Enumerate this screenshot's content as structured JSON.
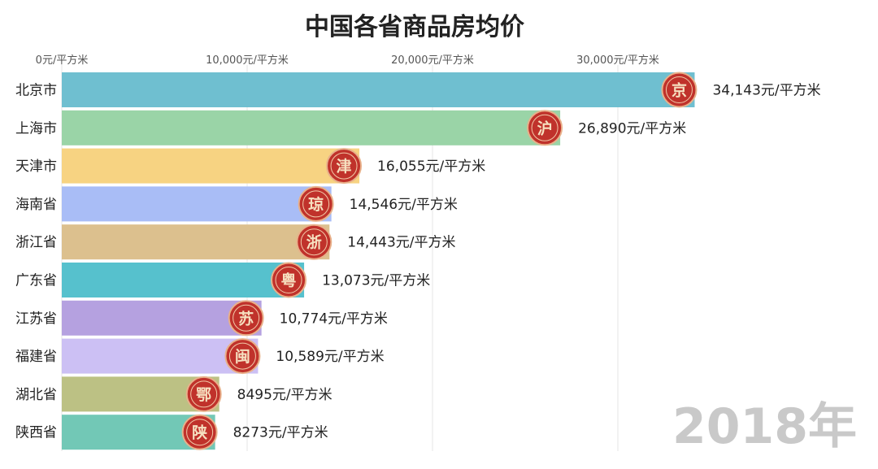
{
  "chart_data": {
    "type": "bar",
    "orientation": "horizontal",
    "title": "中国各省商品房均价",
    "period_label": "2018年",
    "unit_suffix": "元/平方米",
    "xlim": [
      0,
      35000
    ],
    "x_ticks": [
      {
        "value": 0,
        "label": "0元/平方米"
      },
      {
        "value": 10000,
        "label": "10,000元/平方米"
      },
      {
        "value": 20000,
        "label": "20,000元/平方米"
      },
      {
        "value": 30000,
        "label": "30,000元/平方米"
      }
    ],
    "grid": true,
    "categories": [
      "北京市",
      "上海市",
      "天津市",
      "海南省",
      "浙江省",
      "广东省",
      "江苏省",
      "福建省",
      "湖北省",
      "陕西省"
    ],
    "values": [
      34143,
      26890,
      16055,
      14546,
      14443,
      13073,
      10774,
      10589,
      8495,
      8273
    ],
    "value_labels": [
      "34,143元/平方米",
      "26,890元/平方米",
      "16,055元/平方米",
      "14,546元/平方米",
      "14,443元/平方米",
      "13,073元/平方米",
      "10,774元/平方米",
      "10,589元/平方米",
      "8495元/平方米",
      "8273元/平方米"
    ],
    "badges": [
      "京",
      "沪",
      "津",
      "琼",
      "浙",
      "粤",
      "苏",
      "闽",
      "鄂",
      "陕"
    ],
    "colors": [
      "#6fbfd0",
      "#9ad4a7",
      "#f7d382",
      "#a9bdf6",
      "#dcc08e",
      "#56c1cd",
      "#b5a1e0",
      "#ccc0f4",
      "#bcc184",
      "#72c8b6"
    ],
    "badge_color": "#c0322b"
  }
}
